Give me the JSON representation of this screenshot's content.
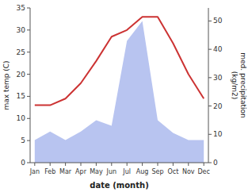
{
  "chart_data": {
    "type": "line",
    "xlabel": "date (month)",
    "ylabel": "max temp (C)",
    "y2label": "med. precipitation\n(kg/m2)",
    "categories": [
      "Jan",
      "Feb",
      "Mar",
      "Apr",
      "May",
      "Jun",
      "Jul",
      "Aug",
      "Sep",
      "Oct",
      "Nov",
      "Dec"
    ],
    "series": [
      {
        "type": "area",
        "axis": "y2",
        "color": "#b8c4f0",
        "values": [
          8.0,
          11.0,
          8.0,
          11.0,
          15.0,
          13.0,
          43.0,
          50.0,
          15.0,
          10.5,
          8.0,
          8.0
        ]
      },
      {
        "type": "line",
        "color": "#cc3333",
        "values": [
          13.0,
          13.0,
          14.5,
          18.0,
          23.0,
          28.5,
          30.0,
          33.0,
          33.0,
          27.0,
          20.0,
          14.5
        ]
      }
    ],
    "ylim": [
      0,
      35
    ],
    "yticks": [
      0,
      5,
      10,
      15,
      20,
      25,
      30,
      35
    ],
    "y2lim": [
      0,
      54.6
    ],
    "y2ticks": [
      0,
      10,
      20,
      30,
      40,
      50
    ],
    "grid": false
  }
}
